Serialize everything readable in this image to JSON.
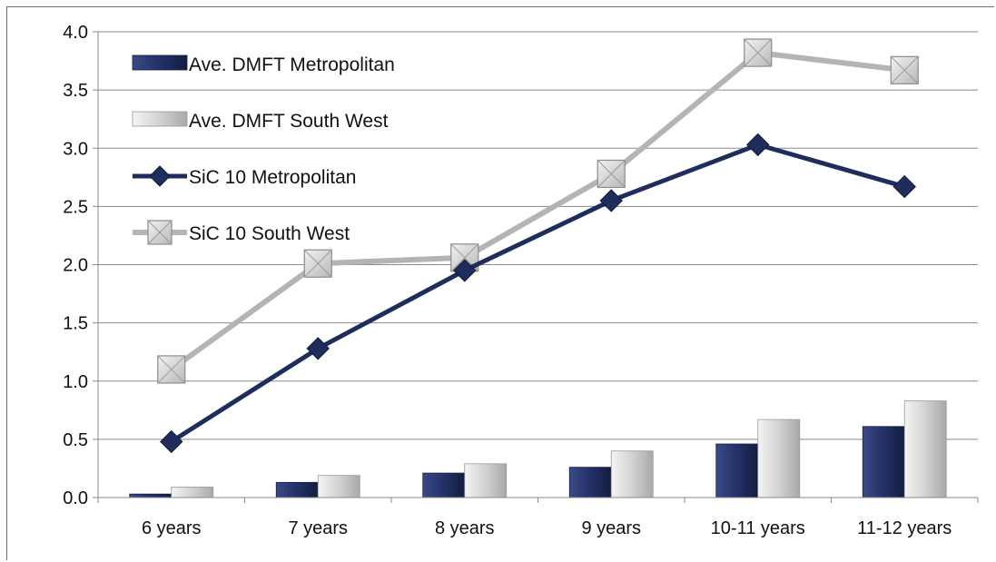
{
  "chart_data": {
    "type": "bar",
    "title": "",
    "xlabel": "",
    "ylabel": "",
    "ylim": [
      0,
      4.0
    ],
    "yticks": [
      "0.0",
      "0.5",
      "1.0",
      "1.5",
      "2.0",
      "2.5",
      "3.0",
      "3.5",
      "4.0"
    ],
    "grid": true,
    "legend_position": "top-left",
    "categories": [
      "6 years",
      "7 years",
      "8 years",
      "9 years",
      "10-11  years",
      "11-12  years"
    ],
    "series": [
      {
        "name": "Ave. DMFT Metropolitan",
        "kind": "bar",
        "color": "#1f2d5c",
        "values": [
          0.03,
          0.13,
          0.21,
          0.26,
          0.46,
          0.61
        ]
      },
      {
        "name": "Ave. DMFT South West",
        "kind": "bar",
        "color": "#c0c0c0",
        "values": [
          0.09,
          0.19,
          0.29,
          0.4,
          0.67,
          0.83
        ]
      },
      {
        "name": "SiC 10 Metropolitan",
        "kind": "line",
        "marker": "diamond",
        "color": "#1f2d5c",
        "values": [
          0.48,
          1.28,
          1.95,
          2.55,
          3.03,
          2.67
        ]
      },
      {
        "name": "SiC 10 South West",
        "kind": "line",
        "marker": "square",
        "color": "#b4b4b4",
        "values": [
          1.1,
          2.01,
          2.06,
          2.78,
          3.82,
          3.67
        ]
      }
    ]
  }
}
